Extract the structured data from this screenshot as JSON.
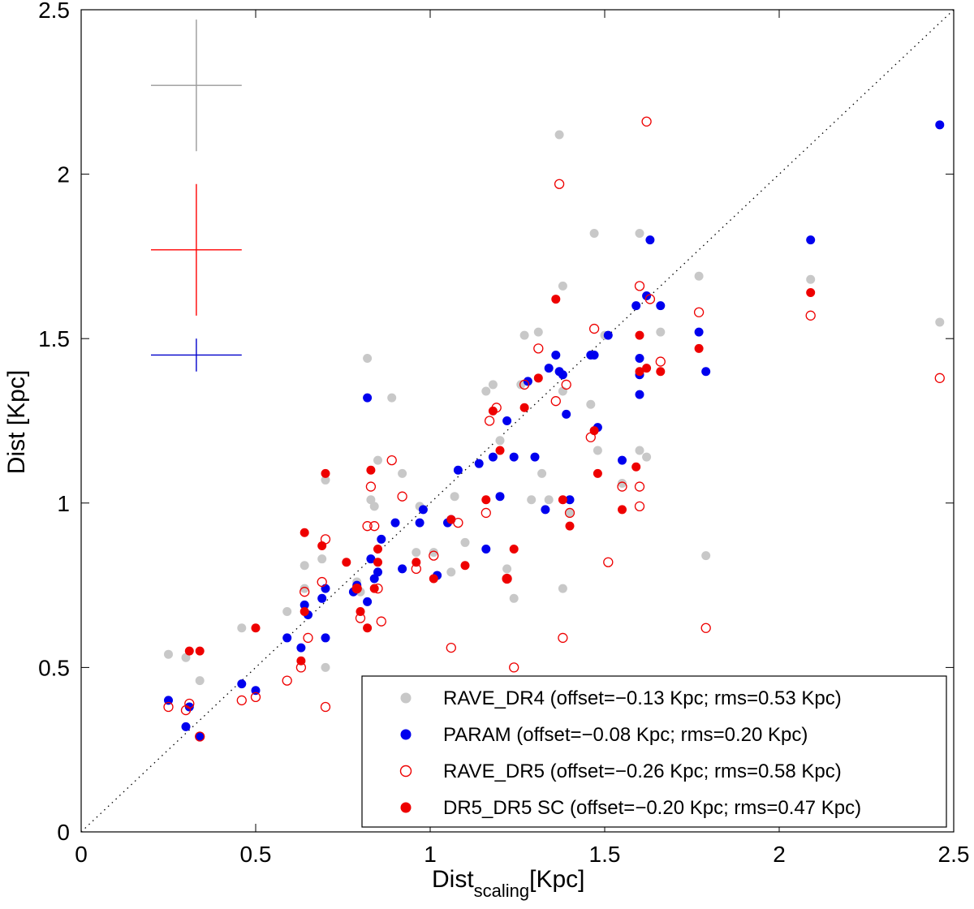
{
  "chart_data": {
    "type": "scatter",
    "title": "",
    "xlabel_main": "Dist",
    "xlabel_sub": "scaling",
    "xlabel_unit": "[Kpc]",
    "ylabel": "Dist [Kpc]",
    "xlim": [
      0,
      2.5
    ],
    "ylim": [
      0,
      2.5
    ],
    "xticks": [
      "0",
      "0.5",
      "1",
      "1.5",
      "2",
      "2.5"
    ],
    "yticks": [
      "0",
      "0.5",
      "1",
      "1.5",
      "2",
      "2.5"
    ],
    "xtick_values": [
      0,
      0.5,
      1,
      1.5,
      2,
      2.5
    ],
    "ytick_values": [
      0,
      0.5,
      1,
      1.5,
      2,
      2.5
    ],
    "legend_position": "bottom-right",
    "reference_line": {
      "style": "dotted",
      "from": [
        0,
        0
      ],
      "to": [
        2.5,
        2.5
      ]
    },
    "error_bars": [
      {
        "series": "RAVE_DR4",
        "color": "#9a9a9a",
        "x": 0.33,
        "y": 2.27,
        "xerr": 0.13,
        "yerr": 0.2
      },
      {
        "series": "DR5_DR5 SC",
        "color": "#ff0000",
        "x": 0.33,
        "y": 1.77,
        "xerr": 0.13,
        "yerr": 0.2
      },
      {
        "series": "PARAM",
        "color": "#0000cc",
        "x": 0.33,
        "y": 1.45,
        "xerr": 0.13,
        "yerr": 0.05
      }
    ],
    "series": [
      {
        "name": "RAVE_DR4",
        "legend": "RAVE_DR4 (offset=−0.13 Kpc; rms=0.53 Kpc)",
        "color": "#c8c8c8",
        "marker": "filled",
        "points": [
          [
            0.25,
            0.54
          ],
          [
            0.3,
            0.53
          ],
          [
            0.34,
            0.46
          ],
          [
            0.46,
            0.62
          ],
          [
            0.59,
            0.67
          ],
          [
            0.64,
            0.74
          ],
          [
            0.64,
            0.81
          ],
          [
            0.69,
            0.83
          ],
          [
            0.7,
            1.07
          ],
          [
            0.7,
            0.5
          ],
          [
            0.79,
            0.76
          ],
          [
            0.8,
            0.73
          ],
          [
            0.82,
            1.44
          ],
          [
            0.83,
            1.01
          ],
          [
            0.84,
            0.99
          ],
          [
            0.85,
            1.13
          ],
          [
            0.89,
            1.32
          ],
          [
            0.92,
            1.09
          ],
          [
            0.96,
            0.85
          ],
          [
            0.97,
            0.99
          ],
          [
            1.01,
            0.85
          ],
          [
            1.06,
            0.79
          ],
          [
            1.07,
            1.02
          ],
          [
            1.1,
            0.88
          ],
          [
            1.16,
            1.34
          ],
          [
            1.18,
            1.36
          ],
          [
            1.2,
            1.19
          ],
          [
            1.22,
            0.8
          ],
          [
            1.24,
            0.71
          ],
          [
            1.26,
            1.36
          ],
          [
            1.27,
            1.51
          ],
          [
            1.29,
            1.01
          ],
          [
            1.31,
            1.52
          ],
          [
            1.32,
            1.09
          ],
          [
            1.34,
            1.01
          ],
          [
            1.37,
            2.12
          ],
          [
            1.38,
            1.66
          ],
          [
            1.38,
            1.34
          ],
          [
            1.38,
            0.74
          ],
          [
            1.4,
            0.97
          ],
          [
            1.46,
            1.3
          ],
          [
            1.47,
            1.82
          ],
          [
            1.48,
            1.16
          ],
          [
            1.5,
            1.51
          ],
          [
            1.55,
            1.06
          ],
          [
            1.6,
            1.82
          ],
          [
            1.6,
            1.16
          ],
          [
            1.62,
            1.14
          ],
          [
            1.66,
            1.52
          ],
          [
            1.77,
            1.69
          ],
          [
            1.79,
            0.84
          ],
          [
            2.09,
            1.68
          ],
          [
            2.46,
            1.55
          ]
        ]
      },
      {
        "name": "PARAM",
        "legend": "PARAM  (offset=−0.08 Kpc; rms=0.20 Kpc)",
        "color": "#0000ee",
        "marker": "filled",
        "points": [
          [
            0.25,
            0.4
          ],
          [
            0.3,
            0.32
          ],
          [
            0.31,
            0.38
          ],
          [
            0.34,
            0.29
          ],
          [
            0.46,
            0.45
          ],
          [
            0.5,
            0.43
          ],
          [
            0.59,
            0.59
          ],
          [
            0.63,
            0.56
          ],
          [
            0.64,
            0.69
          ],
          [
            0.65,
            0.66
          ],
          [
            0.69,
            0.71
          ],
          [
            0.7,
            0.74
          ],
          [
            0.7,
            0.59
          ],
          [
            0.78,
            0.73
          ],
          [
            0.79,
            0.75
          ],
          [
            0.82,
            0.7
          ],
          [
            0.82,
            1.32
          ],
          [
            0.83,
            0.83
          ],
          [
            0.84,
            0.77
          ],
          [
            0.85,
            0.79
          ],
          [
            0.86,
            0.89
          ],
          [
            0.9,
            0.94
          ],
          [
            0.92,
            0.8
          ],
          [
            0.97,
            0.94
          ],
          [
            0.98,
            0.98
          ],
          [
            1.02,
            0.78
          ],
          [
            1.05,
            0.94
          ],
          [
            1.06,
            0.95
          ],
          [
            1.08,
            1.1
          ],
          [
            1.14,
            1.12
          ],
          [
            1.16,
            0.86
          ],
          [
            1.18,
            1.14
          ],
          [
            1.2,
            1.02
          ],
          [
            1.22,
            1.25
          ],
          [
            1.24,
            1.14
          ],
          [
            1.28,
            1.37
          ],
          [
            1.3,
            1.14
          ],
          [
            1.33,
            0.98
          ],
          [
            1.34,
            1.41
          ],
          [
            1.36,
            1.45
          ],
          [
            1.37,
            1.4
          ],
          [
            1.38,
            1.39
          ],
          [
            1.39,
            1.27
          ],
          [
            1.4,
            1.01
          ],
          [
            1.46,
            1.45
          ],
          [
            1.47,
            1.45
          ],
          [
            1.48,
            1.23
          ],
          [
            1.51,
            1.51
          ],
          [
            1.55,
            1.13
          ],
          [
            1.59,
            1.6
          ],
          [
            1.6,
            1.44
          ],
          [
            1.6,
            1.39
          ],
          [
            1.6,
            1.33
          ],
          [
            1.62,
            1.63
          ],
          [
            1.63,
            1.8
          ],
          [
            1.66,
            1.6
          ],
          [
            1.77,
            1.52
          ],
          [
            1.79,
            1.4
          ],
          [
            2.09,
            1.8
          ],
          [
            2.46,
            2.15
          ]
        ]
      },
      {
        "name": "RAVE_DR5",
        "legend": "RAVE_DR5  (offset=−0.26 Kpc; rms=0.58 Kpc)",
        "color": "#ee0000",
        "marker": "open",
        "points": [
          [
            0.25,
            0.38
          ],
          [
            0.3,
            0.37
          ],
          [
            0.31,
            0.39
          ],
          [
            0.34,
            0.29
          ],
          [
            0.46,
            0.4
          ],
          [
            0.5,
            0.41
          ],
          [
            0.59,
            0.46
          ],
          [
            0.63,
            0.5
          ],
          [
            0.64,
            0.73
          ],
          [
            0.65,
            0.59
          ],
          [
            0.69,
            0.76
          ],
          [
            0.7,
            0.89
          ],
          [
            0.7,
            0.38
          ],
          [
            0.79,
            0.74
          ],
          [
            0.8,
            0.65
          ],
          [
            0.82,
            0.93
          ],
          [
            0.83,
            1.05
          ],
          [
            0.84,
            0.93
          ],
          [
            0.85,
            0.74
          ],
          [
            0.86,
            0.64
          ],
          [
            0.89,
            1.13
          ],
          [
            0.92,
            1.02
          ],
          [
            0.96,
            0.8
          ],
          [
            1.01,
            0.84
          ],
          [
            1.06,
            0.56
          ],
          [
            1.08,
            0.94
          ],
          [
            1.16,
            0.97
          ],
          [
            1.17,
            1.25
          ],
          [
            1.19,
            1.29
          ],
          [
            1.22,
            0.77
          ],
          [
            1.24,
            0.5
          ],
          [
            1.27,
            1.36
          ],
          [
            1.31,
            1.47
          ],
          [
            1.36,
            1.31
          ],
          [
            1.37,
            1.97
          ],
          [
            1.38,
            0.59
          ],
          [
            1.39,
            1.36
          ],
          [
            1.4,
            0.97
          ],
          [
            1.46,
            1.2
          ],
          [
            1.47,
            1.53
          ],
          [
            1.51,
            0.82
          ],
          [
            1.55,
            1.05
          ],
          [
            1.6,
            1.05
          ],
          [
            1.6,
            0.99
          ],
          [
            1.6,
            1.66
          ],
          [
            1.62,
            2.16
          ],
          [
            1.63,
            1.62
          ],
          [
            1.66,
            1.43
          ],
          [
            1.77,
            1.58
          ],
          [
            1.79,
            0.62
          ],
          [
            2.09,
            1.57
          ],
          [
            2.46,
            1.38
          ]
        ]
      },
      {
        "name": "DR5_DR5 SC",
        "legend": "DR5_DR5 SC  (offset=−0.20 Kpc; rms=0.47 Kpc)",
        "color": "#ee0000",
        "marker": "filled",
        "points": [
          [
            0.31,
            0.55
          ],
          [
            0.34,
            0.55
          ],
          [
            0.5,
            0.62
          ],
          [
            0.63,
            0.52
          ],
          [
            0.64,
            0.67
          ],
          [
            0.64,
            0.91
          ],
          [
            0.69,
            0.87
          ],
          [
            0.7,
            1.09
          ],
          [
            0.76,
            0.82
          ],
          [
            0.79,
            0.74
          ],
          [
            0.8,
            0.67
          ],
          [
            0.82,
            0.62
          ],
          [
            0.83,
            1.1
          ],
          [
            0.84,
            0.74
          ],
          [
            0.85,
            0.82
          ],
          [
            0.85,
            0.86
          ],
          [
            0.96,
            0.82
          ],
          [
            1.01,
            0.77
          ],
          [
            1.06,
            0.95
          ],
          [
            1.1,
            0.81
          ],
          [
            1.16,
            1.01
          ],
          [
            1.18,
            1.28
          ],
          [
            1.2,
            1.16
          ],
          [
            1.22,
            0.77
          ],
          [
            1.24,
            0.86
          ],
          [
            1.27,
            1.29
          ],
          [
            1.31,
            1.38
          ],
          [
            1.36,
            1.62
          ],
          [
            1.38,
            1.01
          ],
          [
            1.4,
            0.93
          ],
          [
            1.47,
            1.22
          ],
          [
            1.48,
            1.09
          ],
          [
            1.55,
            0.98
          ],
          [
            1.59,
            1.11
          ],
          [
            1.6,
            1.51
          ],
          [
            1.6,
            1.4
          ],
          [
            1.62,
            1.41
          ],
          [
            1.66,
            1.4
          ],
          [
            1.77,
            1.47
          ],
          [
            2.09,
            1.64
          ]
        ]
      }
    ]
  }
}
